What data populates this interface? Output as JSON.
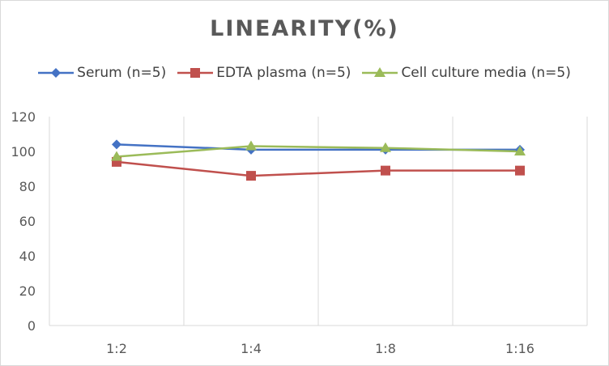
{
  "chart_data": {
    "type": "line",
    "title": "LINEARITY(%)",
    "categories": [
      "1:2",
      "1:4",
      "1:8",
      "1:16"
    ],
    "ylim": [
      0,
      120
    ],
    "yticks": [
      0,
      20,
      40,
      60,
      80,
      100,
      120
    ],
    "grid": "vertical lines only",
    "legend_position": "top",
    "series": [
      {
        "name": "Serum (n=5)",
        "values": [
          104,
          101,
          101,
          101
        ],
        "color": "#4472c4",
        "marker": "diamond"
      },
      {
        "name": "EDTA plasma (n=5)",
        "values": [
          94,
          86,
          89,
          89
        ],
        "color": "#c0504d",
        "marker": "square"
      },
      {
        "name": "Cell culture media (n=5)",
        "values": [
          97,
          103,
          102,
          100
        ],
        "color": "#9bbb59",
        "marker": "triangle"
      }
    ]
  }
}
